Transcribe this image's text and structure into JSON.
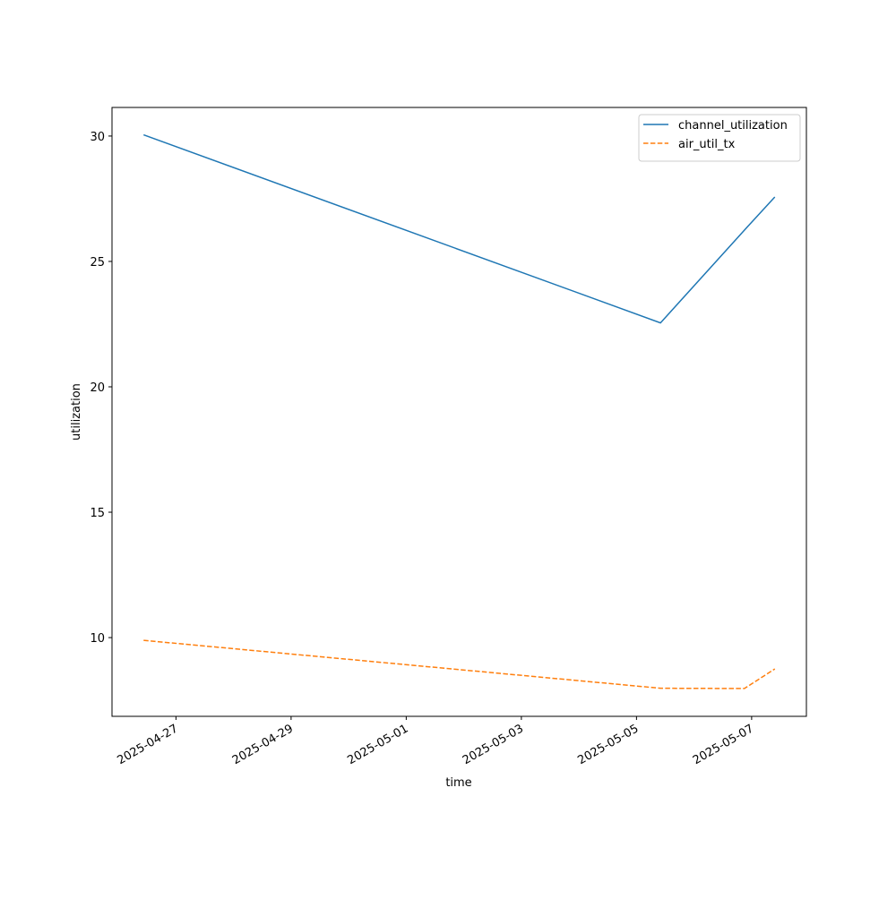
{
  "chart_data": {
    "type": "line",
    "xlabel": "time",
    "ylabel": "utilization",
    "x": [
      "2025-04-26T10:30Z",
      "2025-05-05T10:00Z",
      "2025-05-06T21:00Z",
      "2025-05-07T09:40Z"
    ],
    "series": [
      {
        "name": "channel_utilization",
        "color": "#1f77b4",
        "linestyle": "solid",
        "values": [
          30.05,
          22.55,
          26.25,
          27.57
        ]
      },
      {
        "name": "air_util_tx",
        "color": "#ff7f0e",
        "linestyle": "dashed",
        "values": [
          9.89,
          7.98,
          7.97,
          8.75
        ]
      }
    ],
    "xlim": [
      "2025-04-25T21:20Z",
      "2025-05-07T22:50Z"
    ],
    "xticks": [
      "2025-04-27",
      "2025-04-29",
      "2025-05-01",
      "2025-05-03",
      "2025-05-05",
      "2025-05-07"
    ],
    "ylim": [
      6.86,
      31.14
    ],
    "yticks": [
      10,
      15,
      20,
      25,
      30
    ],
    "legend": "upper right"
  }
}
